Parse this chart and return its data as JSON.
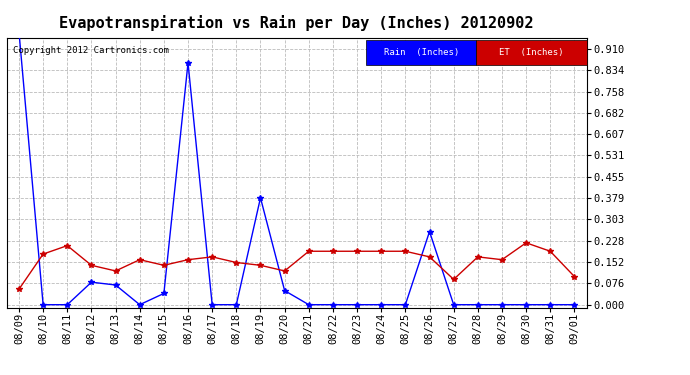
{
  "title": "Evapotranspiration vs Rain per Day (Inches) 20120902",
  "copyright": "Copyright 2012 Cartronics.com",
  "x_labels": [
    "08/09",
    "08/10",
    "08/11",
    "08/12",
    "08/13",
    "08/14",
    "08/15",
    "08/16",
    "08/17",
    "08/18",
    "08/19",
    "08/20",
    "08/21",
    "08/22",
    "08/23",
    "08/24",
    "08/25",
    "08/26",
    "08/27",
    "08/28",
    "08/29",
    "08/30",
    "08/31",
    "09/01"
  ],
  "rain_values": [
    0.97,
    0.0,
    0.0,
    0.08,
    0.07,
    0.0,
    0.04,
    0.86,
    0.0,
    0.0,
    0.38,
    0.05,
    0.0,
    0.0,
    0.0,
    0.0,
    0.0,
    0.26,
    0.0,
    0.0,
    0.0,
    0.0,
    0.0,
    0.0
  ],
  "et_values": [
    0.055,
    0.18,
    0.21,
    0.14,
    0.12,
    0.16,
    0.14,
    0.16,
    0.17,
    0.15,
    0.14,
    0.12,
    0.19,
    0.19,
    0.19,
    0.19,
    0.19,
    0.17,
    0.09,
    0.17,
    0.16,
    0.22,
    0.19,
    0.1
  ],
  "rain_color": "#0000ff",
  "et_color": "#cc0000",
  "background_color": "#ffffff",
  "grid_color": "#bbbbbb",
  "yticks": [
    0.0,
    0.076,
    0.152,
    0.228,
    0.303,
    0.379,
    0.455,
    0.531,
    0.607,
    0.682,
    0.758,
    0.834,
    0.91
  ],
  "ylim": [
    -0.01,
    0.95
  ],
  "legend_rain_label": "Rain  (Inches)",
  "legend_et_label": "ET  (Inches)",
  "legend_rain_bg": "#0000ff",
  "legend_et_bg": "#cc0000",
  "title_fontsize": 11,
  "tick_fontsize": 7.5,
  "marker": "*",
  "marker_size": 4,
  "line_width": 1.0
}
